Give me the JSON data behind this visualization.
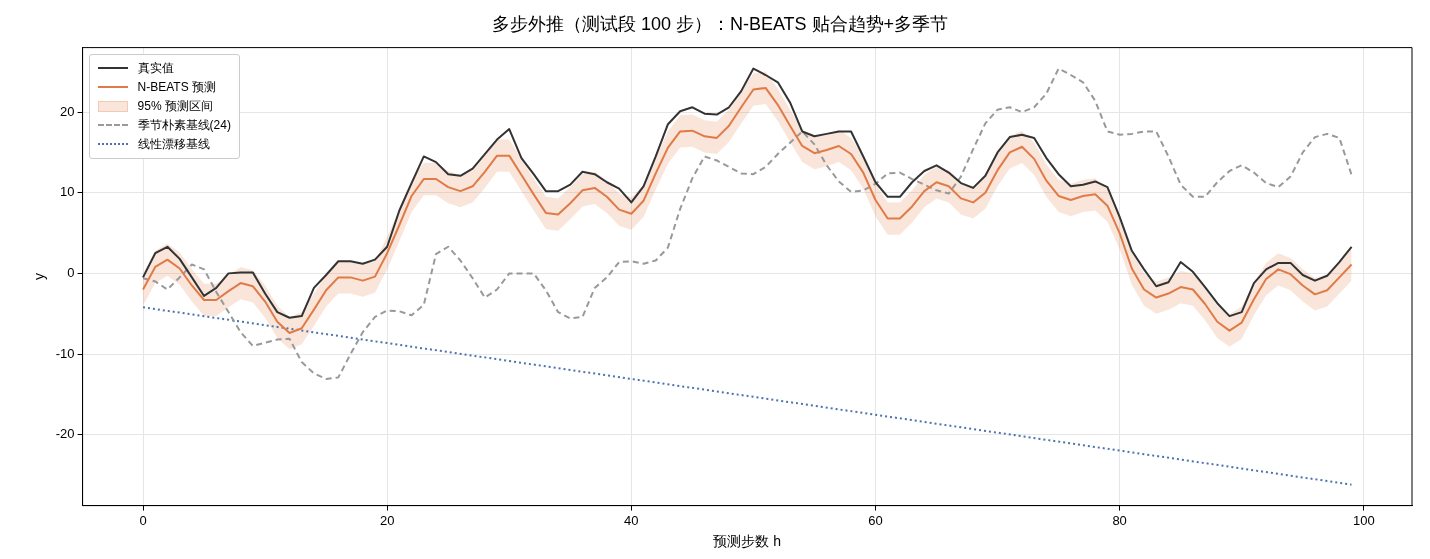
{
  "chart_data": {
    "type": "line",
    "title": "多步外推（测试段 100 步）：N-BEATS 贴合趋势+多季节",
    "xlabel": "预测步数 h",
    "ylabel": "y",
    "x": [
      0,
      1,
      2,
      3,
      4,
      5,
      6,
      7,
      8,
      9,
      10,
      11,
      12,
      13,
      14,
      15,
      16,
      17,
      18,
      19,
      20,
      21,
      22,
      23,
      24,
      25,
      26,
      27,
      28,
      29,
      30,
      31,
      32,
      33,
      34,
      35,
      36,
      37,
      38,
      39,
      40,
      41,
      42,
      43,
      44,
      45,
      46,
      47,
      48,
      49,
      50,
      51,
      52,
      53,
      54,
      55,
      56,
      57,
      58,
      59,
      60,
      61,
      62,
      63,
      64,
      65,
      66,
      67,
      68,
      69,
      70,
      71,
      72,
      73,
      74,
      75,
      76,
      77,
      78,
      79,
      80,
      81,
      82,
      83,
      84,
      85,
      86,
      87,
      88,
      89,
      90,
      91,
      92,
      93,
      94,
      95,
      96,
      97,
      98,
      99
    ],
    "series": [
      {
        "name": "真实值",
        "color": "#333333",
        "line_style": "solid",
        "values": [
          -0.5,
          2.5,
          3.3,
          1.8,
          -0.5,
          -2.8,
          -1.8,
          0,
          0.1,
          0.1,
          -2.5,
          -4.8,
          -5.5,
          -5.3,
          -1.8,
          -0.2,
          1.5,
          1.5,
          1.2,
          1.7,
          3.3,
          7.8,
          11.2,
          14.5,
          13.8,
          12.3,
          12.1,
          13,
          14.8,
          16.6,
          17.9,
          14.3,
          12.3,
          10.2,
          10.2,
          11,
          12.6,
          12.3,
          11.3,
          10.5,
          8.8,
          10.8,
          14.5,
          18.5,
          20.1,
          20.6,
          19.8,
          19.7,
          20.6,
          22.6,
          25.4,
          24.6,
          23.7,
          21.2,
          17.6,
          17,
          17.3,
          17.6,
          17.6,
          14.5,
          11.3,
          9.5,
          9.5,
          11.3,
          12.7,
          13.4,
          12.5,
          11.2,
          10.6,
          12.1,
          15,
          16.9,
          17.2,
          16.8,
          14.3,
          12.3,
          10.8,
          11,
          11.4,
          10.7,
          7,
          2.8,
          0.5,
          -1.6,
          -1.1,
          1.4,
          0.2,
          -1.7,
          -3.7,
          -5.3,
          -4.8,
          -1.2,
          0.5,
          1.3,
          1.3,
          -0.2,
          -0.9,
          -0.3,
          1.4,
          3.3
        ]
      },
      {
        "name": "N-BEATS 预测",
        "color": "#e07b47",
        "line_style": "solid",
        "values": [
          -2,
          0.8,
          1.7,
          0.6,
          -1.5,
          -3.3,
          -3.3,
          -2.2,
          -1.2,
          -1.6,
          -3.5,
          -6,
          -7.4,
          -6.8,
          -4.5,
          -2.1,
          -0.5,
          -0.5,
          -0.9,
          -0.4,
          2.5,
          6,
          9.6,
          11.7,
          11.7,
          10.7,
          10.2,
          10.8,
          12.6,
          14.6,
          14.6,
          12.2,
          9.8,
          7.5,
          7.3,
          8.7,
          10.3,
          10.6,
          9.5,
          7.9,
          7.4,
          9,
          12.4,
          15.6,
          17.6,
          17.7,
          17,
          16.8,
          18.3,
          20.6,
          22.8,
          23,
          20.9,
          18.3,
          15.8,
          14.9,
          15.3,
          15.8,
          14.8,
          12.5,
          9.1,
          6.8,
          6.8,
          8.3,
          10.2,
          11.3,
          10.8,
          9.3,
          8.8,
          10,
          12.8,
          15,
          15.7,
          14.2,
          11.5,
          9.6,
          9.1,
          9.6,
          9.8,
          8.4,
          5,
          0.6,
          -2,
          -3,
          -2.5,
          -1.7,
          -2,
          -3.8,
          -6,
          -7.1,
          -6.1,
          -3.2,
          -0.7,
          0.5,
          -0.1,
          -1.5,
          -2.6,
          -2.1,
          -0.5,
          1.1
        ],
        "lower": [
          -4,
          -1.2,
          -0.3,
          -1.4,
          -3.5,
          -5.3,
          -5.3,
          -4.2,
          -3.2,
          -3.6,
          -5.5,
          -8,
          -9.4,
          -8.8,
          -6.5,
          -4.1,
          -2.5,
          -2.5,
          -2.9,
          -2.4,
          0.5,
          4,
          7.6,
          9.7,
          9.7,
          8.7,
          8.2,
          8.8,
          10.6,
          12.6,
          12.6,
          10.2,
          7.8,
          5.5,
          5.3,
          6.7,
          8.3,
          8.6,
          7.5,
          5.9,
          5.4,
          7,
          10.4,
          13.6,
          15.6,
          15.7,
          15,
          14.8,
          16.3,
          18.6,
          20.8,
          21,
          18.9,
          16.3,
          13.8,
          12.9,
          13.3,
          13.8,
          12.8,
          10.5,
          7.1,
          4.8,
          4.8,
          6.3,
          8.2,
          9.3,
          8.8,
          7.3,
          6.8,
          8,
          10.8,
          13,
          13.7,
          12.2,
          9.5,
          7.6,
          7.1,
          7.6,
          7.8,
          6.4,
          3,
          -1.4,
          -4,
          -5,
          -4.5,
          -3.7,
          -4,
          -5.8,
          -8,
          -9.1,
          -8.1,
          -5.2,
          -2.7,
          -1.5,
          -2.1,
          -3.5,
          -4.6,
          -4.1,
          -2.5,
          -0.9
        ],
        "upper": [
          0,
          2.8,
          3.7,
          2.6,
          0.5,
          -1.3,
          -1.3,
          -0.2,
          0.8,
          0.4,
          -1.5,
          -4,
          -5.4,
          -4.8,
          -2.5,
          -0.1,
          1.5,
          1.5,
          1.1,
          1.6,
          4.5,
          8,
          11.6,
          13.7,
          13.7,
          12.7,
          12.2,
          12.8,
          14.6,
          16.6,
          16.6,
          14.2,
          11.8,
          9.5,
          9.3,
          10.7,
          12.3,
          12.6,
          11.5,
          9.9,
          9.4,
          11,
          14.4,
          17.6,
          19.6,
          19.7,
          19,
          18.8,
          20.3,
          22.6,
          24.8,
          25,
          22.9,
          20.3,
          17.8,
          16.9,
          17.3,
          17.8,
          16.8,
          14.5,
          11.1,
          8.8,
          8.8,
          10.3,
          12.2,
          13.3,
          12.8,
          11.3,
          10.8,
          12,
          14.8,
          17,
          17.7,
          16.2,
          13.5,
          11.6,
          11.1,
          11.6,
          11.8,
          10.4,
          7,
          2.6,
          0,
          -1,
          -0.5,
          0.3,
          0,
          -1.8,
          -4,
          -5.1,
          -4.1,
          -1.2,
          1.3,
          2.5,
          1.9,
          0.5,
          -0.6,
          -0.1,
          1.5,
          3.1
        ]
      },
      {
        "name": "季节朴素基线(24)",
        "color": "#999999",
        "line_style": "dashed",
        "values": [
          -0.6,
          -1,
          -2,
          -0.5,
          1.1,
          0.5,
          -2.3,
          -4.8,
          -7.3,
          -9,
          -8.6,
          -8.2,
          -8.1,
          -11,
          -12.4,
          -13.1,
          -12.9,
          -10,
          -7.3,
          -5.4,
          -4.6,
          -4.7,
          -5.2,
          -3.9,
          2.4,
          3.3,
          1.6,
          -0.6,
          -3,
          -2,
          0,
          0,
          0,
          -2.1,
          -4.8,
          -5.6,
          -5.4,
          -1.8,
          -0.5,
          1.4,
          1.5,
          1.2,
          1.6,
          3.2,
          8,
          11.8,
          14.5,
          14,
          13.2,
          12.4,
          12.3,
          13.2,
          14.8,
          16.2,
          17.6,
          16,
          13.4,
          11.4,
          10.1,
          10.3,
          11.1,
          12.4,
          12.5,
          11.7,
          11,
          10.3,
          9.9,
          12,
          15.4,
          18.6,
          20.3,
          20.6,
          20,
          20.6,
          22.3,
          25.4,
          24.6,
          23.7,
          21.4,
          17.6,
          17.2,
          17.3,
          17.6,
          17.6,
          14.5,
          11,
          9.5,
          9.5,
          11.3,
          12.7,
          13.4,
          12.5,
          11.2,
          10.7,
          12,
          15,
          16.9,
          17.3,
          16.8,
          12.2
        ]
      },
      {
        "name": "线性漂移基线",
        "color": "#4c72b0",
        "line_style": "dotted",
        "x": [
          0,
          99
        ],
        "values": [
          -4.2,
          -26.2
        ]
      }
    ],
    "xlim": [
      -4.95,
      103.95
    ],
    "xticks": [
      0,
      20,
      40,
      60,
      80,
      100
    ],
    "ylim": [
      -28.8,
      28.0
    ],
    "yticks": [
      -20,
      -10,
      0,
      10,
      20
    ],
    "annotations": [
      "95% 预测区间"
    ],
    "grid": true,
    "legend": "top left",
    "marker": "none"
  }
}
